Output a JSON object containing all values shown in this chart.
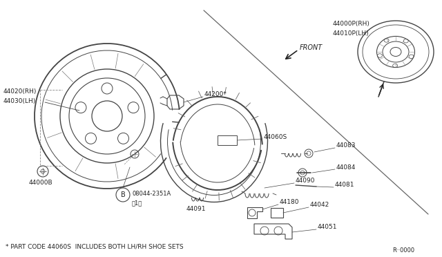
{
  "bg_color": "#ffffff",
  "line_color": "#444444",
  "text_color": "#222222",
  "footnote": "* PART CODE 44060S  INCLUDES BOTH LH/RH SHOE SETS",
  "part_code": "R··0000",
  "labels": {
    "44020RH": "44020(RH)",
    "44030LH": "44030(LH)",
    "44000B": "44000B",
    "44200": "44200*",
    "44060S": "44060S",
    "44083": "44083",
    "44084": "44084",
    "44081": "44081",
    "44090": "44090",
    "44091": "44091",
    "44180": "44180",
    "44042": "44042",
    "44051": "44051",
    "44000P_RH": "44000P(RH)",
    "44010P_LH": "44010P(LH)",
    "front_label": "FRONT"
  }
}
